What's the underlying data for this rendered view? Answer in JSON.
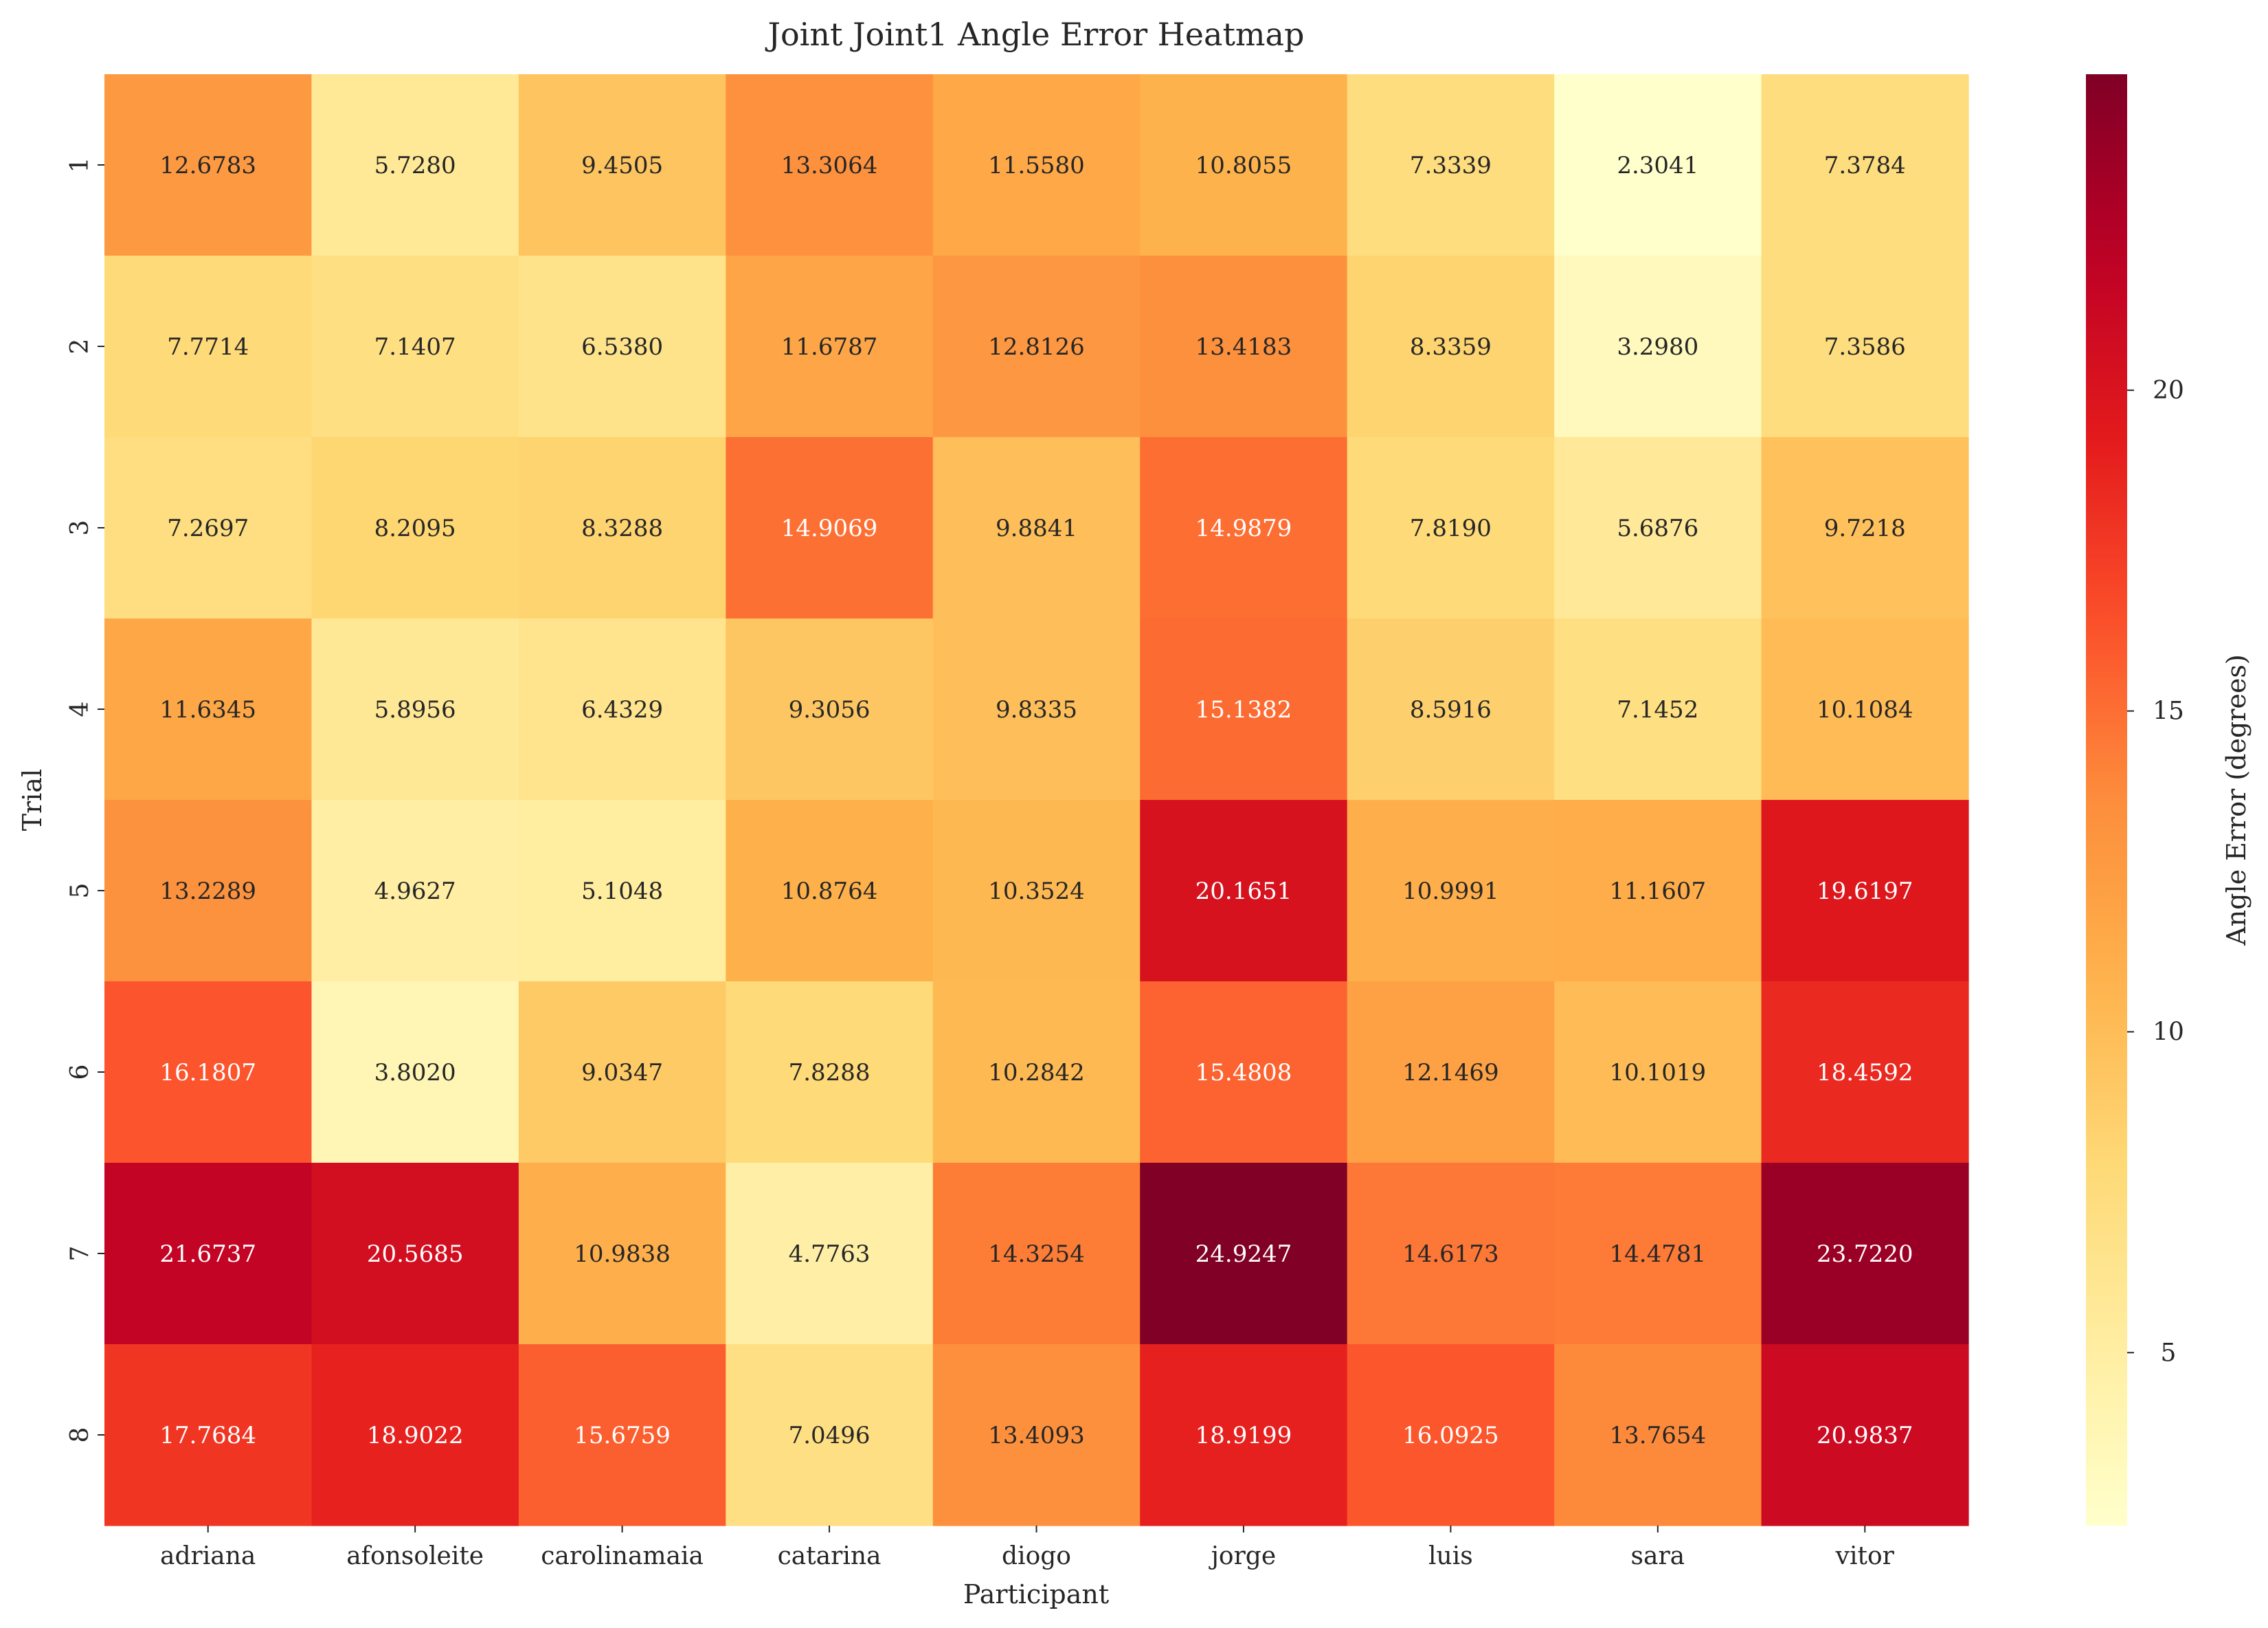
{
  "chart_data": {
    "type": "heatmap",
    "title": "Joint Joint1 Angle Error Heatmap",
    "xlabel": "Participant",
    "ylabel": "Trial",
    "colorbar_label": "Angle Error (degrees)",
    "colormap": "YlOrRd",
    "value_range": [
      2.3041,
      24.9247
    ],
    "colorbar_ticks": [
      "5",
      "10",
      "15",
      "20"
    ],
    "columns": [
      "adriana",
      "afonsoleite",
      "carolinamaia",
      "catarina",
      "diogo",
      "jorge",
      "luis",
      "sara",
      "vitor"
    ],
    "rows": [
      "1",
      "2",
      "3",
      "4",
      "5",
      "6",
      "7",
      "8"
    ],
    "values": [
      [
        "12.6783",
        "5.7280",
        "9.4505",
        "13.3064",
        "11.5580",
        "10.8055",
        "7.3339",
        "2.3041",
        "7.3784"
      ],
      [
        "7.7714",
        "7.1407",
        "6.5380",
        "11.6787",
        "12.8126",
        "13.4183",
        "8.3359",
        "3.2980",
        "7.3586"
      ],
      [
        "7.2697",
        "8.2095",
        "8.3288",
        "14.9069",
        "9.8841",
        "14.9879",
        "7.8190",
        "5.6876",
        "9.7218"
      ],
      [
        "11.6345",
        "5.8956",
        "6.4329",
        "9.3056",
        "9.8335",
        "15.1382",
        "8.5916",
        "7.1452",
        "10.1084"
      ],
      [
        "13.2289",
        "4.9627",
        "5.1048",
        "10.8764",
        "10.3524",
        "20.1651",
        "10.9991",
        "11.1607",
        "19.6197"
      ],
      [
        "16.1807",
        "3.8020",
        "9.0347",
        "7.8288",
        "10.2842",
        "15.4808",
        "12.1469",
        "10.1019",
        "18.4592"
      ],
      [
        "21.6737",
        "20.5685",
        "10.9838",
        "4.7763",
        "14.3254",
        "24.9247",
        "14.6173",
        "14.4781",
        "23.7220"
      ],
      [
        "17.7684",
        "18.9022",
        "15.6759",
        "7.0496",
        "13.4093",
        "18.9199",
        "16.0925",
        "13.7654",
        "20.9837"
      ]
    ]
  }
}
